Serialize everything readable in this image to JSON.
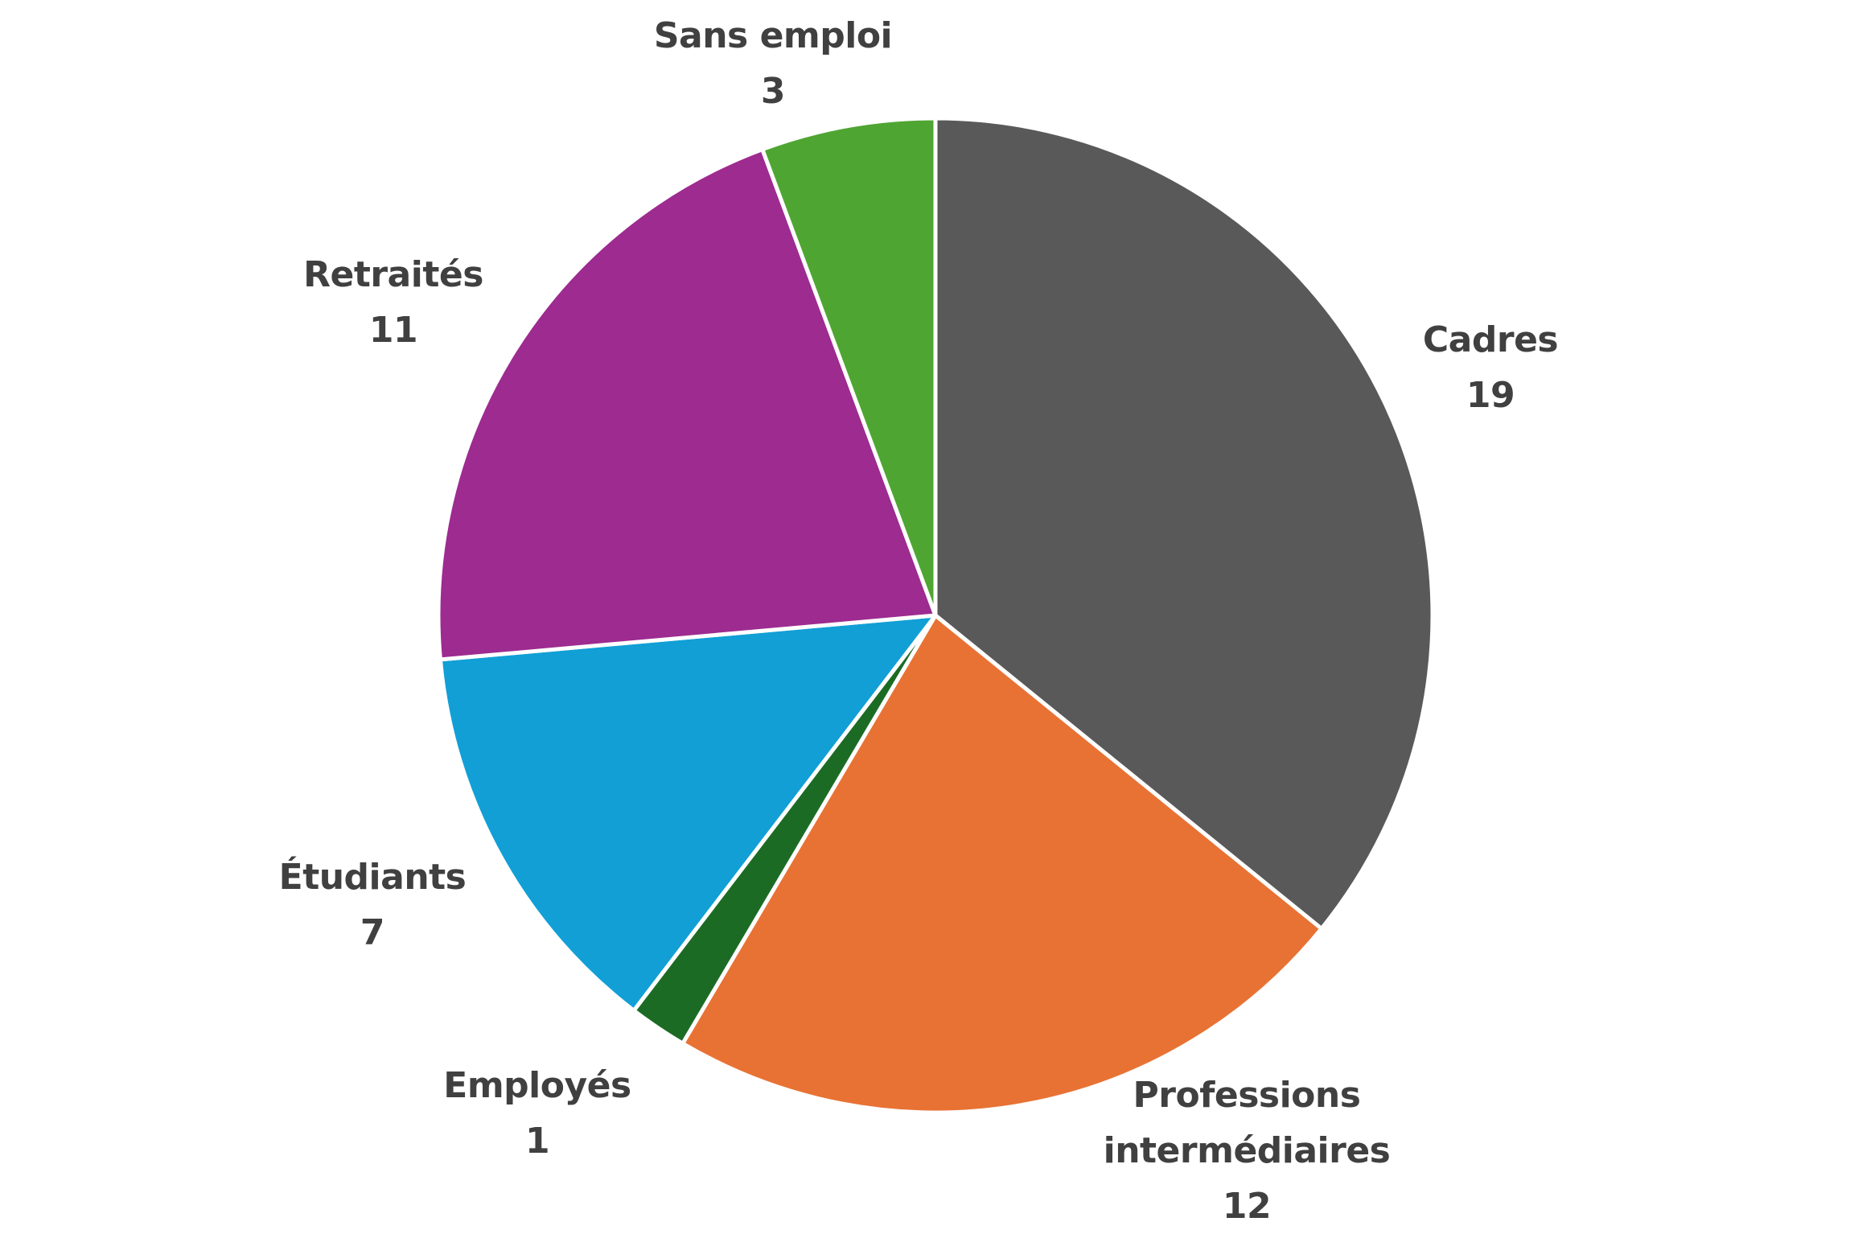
{
  "chart_data": {
    "type": "pie",
    "slices": [
      {
        "label": "Cadres",
        "value": 19,
        "color": "#595959"
      },
      {
        "label": "Professions\nintermédiaires",
        "value": 12,
        "color": "#E87234"
      },
      {
        "label": "Employés",
        "value": 1,
        "color": "#1C6B25"
      },
      {
        "label": "Étudiants",
        "value": 7,
        "color": "#119FD6"
      },
      {
        "label": "Retraités",
        "value": 11,
        "color": "#9D2B90"
      },
      {
        "label": "Sans emploi",
        "value": 3,
        "color": "#4FA532"
      }
    ],
    "start_angle": "12 o'clock",
    "direction": "clockwise",
    "label_color": "#404040",
    "slice_border_color": "#FFFFFF"
  }
}
